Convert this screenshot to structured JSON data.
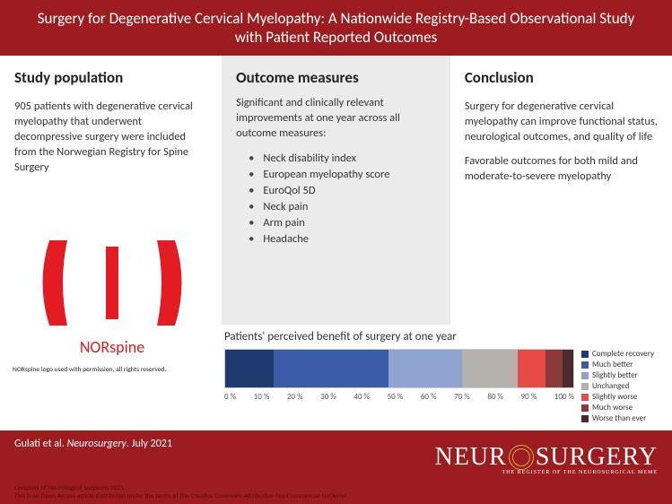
{
  "header": {
    "title": "Surgery for Degenerative Cervical Myelopathy: A Nationwide Registry-Based Observational Study with Patient Reported Outcomes"
  },
  "columns": {
    "study": {
      "heading": "Study population",
      "body": "905 patients with degenerative cervical myelopathy that underwent decompressive surgery were included from the Norwegian Registry for Spine Surgery"
    },
    "outcomes": {
      "heading": "Outcome measures",
      "intro": "Significant and clinically relevant improvements at one year across all outcome measures:",
      "items": [
        "Neck disability index",
        "European myelopathy score",
        "EuroQol 5D",
        "Neck pain",
        "Arm pain",
        "Headache"
      ]
    },
    "conclusion": {
      "heading": "Conclusion",
      "p1": "Surgery for degenerative cervical myelopathy can improve functional status, neurological outcomes, and quality of life",
      "p2": "Favorable outcomes for both mild and moderate-to-severe myelopathy"
    }
  },
  "norspine": {
    "label": "NORspine",
    "caption": "NORspine logo used with permission, all rights reserved.",
    "color": "#e31b23"
  },
  "chart": {
    "title": "Patients' perceived benefit of surgery at one year",
    "type": "stacked-bar-horizontal",
    "segments": [
      {
        "label": "Complete recovery",
        "value": 14,
        "color": "#1f3a6e"
      },
      {
        "label": "Much better",
        "value": 33,
        "color": "#3a5ca8"
      },
      {
        "label": "Slightly better",
        "value": 21,
        "color": "#8ea3cf"
      },
      {
        "label": "Unchanged",
        "value": 16,
        "color": "#b5b1ad"
      },
      {
        "label": "Slightly worse",
        "value": 8,
        "color": "#e64b46"
      },
      {
        "label": "Much worse",
        "value": 5,
        "color": "#8a3a3a"
      },
      {
        "label": "Worse than ever",
        "value": 3,
        "color": "#4a2a2a"
      }
    ],
    "axis_ticks": [
      "0 %",
      "10 %",
      "20 %",
      "30 %",
      "40 %",
      "50 %",
      "60 %",
      "70 %",
      "80 %",
      "90 %",
      "100 %"
    ]
  },
  "footer": {
    "citation_author": "Gulati et al.",
    "citation_journal": "Neurosurgery",
    "citation_date": ". July 2021",
    "copyright1": "Congress of Neurological Surgeons 2021.",
    "copyright2": "This is an Open Access article distributed under the terms of the Creative Commons Attribution-NonCommercial-NoDerivs",
    "logo_main_left": "NEUR",
    "logo_main_right": "SURGERY",
    "logo_sub": "THE REGISTER OF THE NEUROSURGICAL MEME"
  }
}
